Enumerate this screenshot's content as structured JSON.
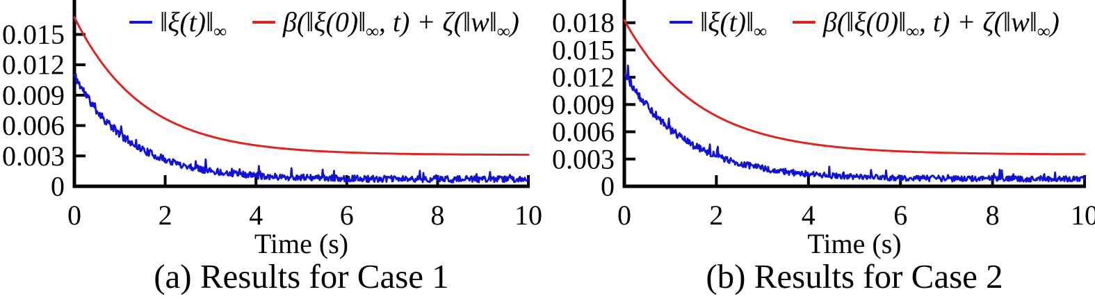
{
  "figure": {
    "background": "#ffffff",
    "axis_color": "#000000",
    "text_color": "#000000"
  },
  "chart_data": [
    {
      "type": "line",
      "title": "(a) Results for Case 1",
      "xlabel": "Time (s)",
      "ylabel": "",
      "xlim": [
        0,
        10
      ],
      "ylim": [
        0,
        0.0184
      ],
      "x_ticks": [
        0,
        2,
        4,
        6,
        8,
        10
      ],
      "x_tick_labels": [
        "0",
        "2",
        "4",
        "6",
        "8",
        "10"
      ],
      "y_ticks": [
        0,
        0.003,
        0.006,
        0.009,
        0.012,
        0.015
      ],
      "y_tick_labels": [
        "0",
        "0.003",
        "0.006",
        "0.009",
        "0.012",
        "0.015"
      ],
      "grid": false,
      "legend_position": "top-inside",
      "series": [
        {
          "name": "‖ξ(t)‖∞",
          "color": "#1212d6",
          "style": "noisy-decay",
          "start": 0.011,
          "floor": 0.0007,
          "tau": 1.2,
          "noise_base": 0.0003,
          "noise_rel": 0.02,
          "seed": 11,
          "samples_t": [
            0,
            1,
            2,
            3,
            4,
            5,
            6,
            7,
            8,
            9,
            10
          ],
          "samples_v": [
            0.011,
            0.0052,
            0.0027,
            0.0016,
            0.0011,
            0.0009,
            0.0008,
            0.00075,
            0.0007,
            0.0007,
            0.0007
          ]
        },
        {
          "name": "β(‖ξ(0)‖∞, t) + ζ(‖w‖∞)",
          "color": "#dd2420",
          "style": "smooth-decay",
          "start": 0.0167,
          "floor": 0.0031,
          "tau": 1.5,
          "samples_t": [
            0,
            1,
            2,
            3,
            4,
            5,
            6,
            7,
            8,
            9,
            10
          ],
          "samples_v": [
            0.0167,
            0.0101,
            0.0067,
            0.0049,
            0.0041,
            0.0036,
            0.0034,
            0.0032,
            0.00315,
            0.0031,
            0.0031
          ]
        }
      ],
      "legend": [
        {
          "color": "#1212d6",
          "segments": [
            {
              "t": "‖ξ(t)‖"
            },
            {
              "t": "∞",
              "sub": true
            }
          ]
        },
        {
          "color": "#dd2420",
          "segments": [
            {
              "t": "β(‖ξ(0)‖"
            },
            {
              "t": "∞",
              "sub": true
            },
            {
              "t": ", t) + ζ(‖w‖"
            },
            {
              "t": "∞",
              "sub": true
            },
            {
              "t": ")"
            }
          ]
        }
      ]
    },
    {
      "type": "line",
      "title": "(b) Results for Case 2",
      "xlabel": "Time (s)",
      "ylabel": "",
      "xlim": [
        0,
        10
      ],
      "ylim": [
        0,
        0.0205
      ],
      "x_ticks": [
        0,
        2,
        4,
        6,
        8,
        10
      ],
      "x_tick_labels": [
        "0",
        "2",
        "4",
        "6",
        "8",
        "10"
      ],
      "y_ticks": [
        0,
        0.003,
        0.006,
        0.009,
        0.012,
        0.015,
        0.018
      ],
      "y_tick_labels": [
        "0",
        "0.003",
        "0.006",
        "0.009",
        "0.012",
        "0.015",
        "0.018"
      ],
      "grid": false,
      "legend_position": "top-inside",
      "series": [
        {
          "name": "‖ξ(t)‖∞",
          "color": "#1212d6",
          "style": "noisy-decay",
          "start": 0.0126,
          "floor": 0.0008,
          "tau": 1.3,
          "noise_base": 0.0003,
          "noise_rel": 0.02,
          "seed": 29,
          "samples_t": [
            0,
            1,
            2,
            3,
            4,
            5,
            6,
            7,
            8,
            9,
            10
          ],
          "samples_v": [
            0.0126,
            0.0063,
            0.0033,
            0.002,
            0.0013,
            0.0011,
            0.0009,
            0.00085,
            0.0008,
            0.0008,
            0.0008
          ]
        },
        {
          "name": "β(‖ξ(0)‖∞, t) + ζ(‖w‖∞)",
          "color": "#dd2420",
          "style": "smooth-decay",
          "start": 0.0183,
          "floor": 0.0035,
          "tau": 1.6,
          "samples_t": [
            0,
            1,
            2,
            3,
            4,
            5,
            6,
            7,
            8,
            9,
            10
          ],
          "samples_v": [
            0.0183,
            0.0114,
            0.0077,
            0.0058,
            0.0047,
            0.0041,
            0.0038,
            0.0037,
            0.0036,
            0.00355,
            0.0035
          ]
        }
      ],
      "legend": [
        {
          "color": "#1212d6",
          "segments": [
            {
              "t": "‖ξ(t)‖"
            },
            {
              "t": "∞",
              "sub": true
            }
          ]
        },
        {
          "color": "#dd2420",
          "segments": [
            {
              "t": "β(‖ξ(0)‖"
            },
            {
              "t": "∞",
              "sub": true
            },
            {
              "t": ", t) + ζ(‖w‖"
            },
            {
              "t": "∞",
              "sub": true
            },
            {
              "t": ")"
            }
          ]
        }
      ]
    }
  ]
}
